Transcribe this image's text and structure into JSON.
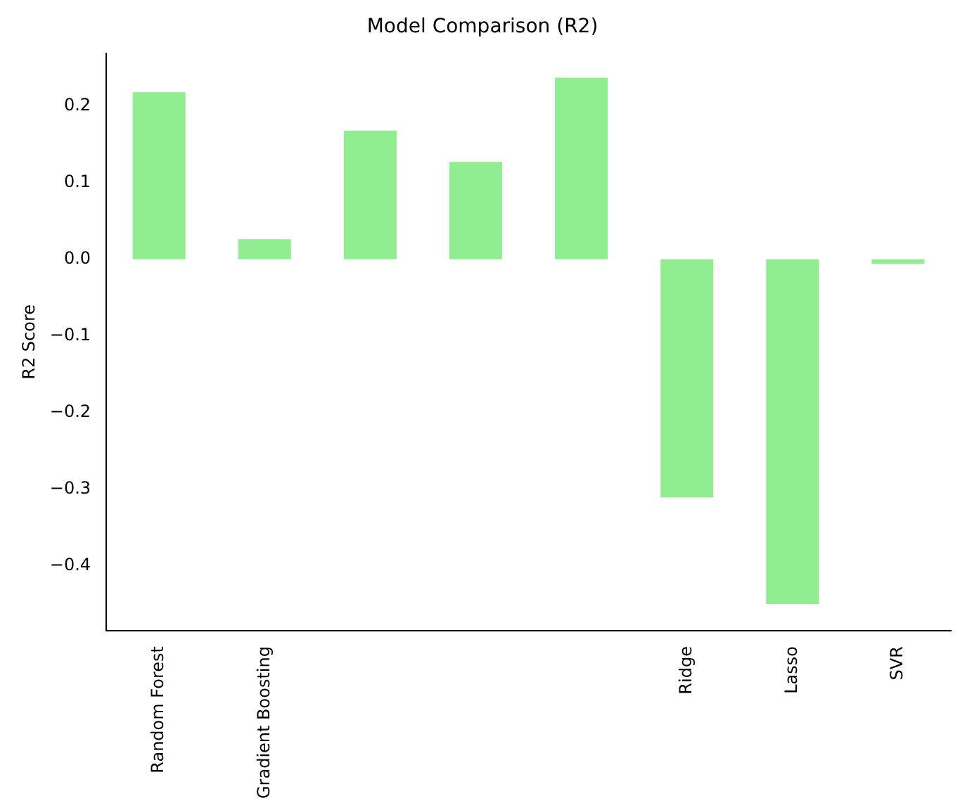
{
  "chart_data": {
    "type": "bar",
    "title": "Model Comparison (R2)",
    "ylabel": "R2 Score",
    "categories": [
      "Random Forest",
      "Gradient Boosting",
      null,
      null,
      null,
      "Ridge",
      "Lasso",
      "SVR"
    ],
    "values": [
      0.218,
      0.026,
      0.168,
      0.127,
      0.237,
      -0.311,
      -0.45,
      -0.006
    ],
    "color": "#90ee90",
    "ylim": [
      -0.485,
      0.269
    ],
    "yticks": [
      {
        "value": -0.4,
        "label": "−0.4"
      },
      {
        "value": -0.3,
        "label": "−0.3"
      },
      {
        "value": -0.2,
        "label": "−0.2"
      },
      {
        "value": -0.1,
        "label": "−0.1"
      },
      {
        "value": 0,
        "label": "0.0"
      },
      0.1,
      0.2
    ],
    "grid": false,
    "legend": false
  }
}
